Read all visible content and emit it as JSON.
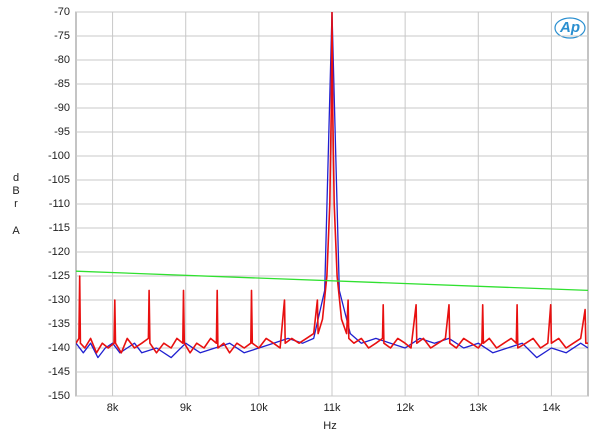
{
  "chart_data": {
    "type": "line",
    "logo": "Ap",
    "xlabel": "Hz",
    "ylabel": [
      "dBr",
      "A"
    ],
    "xlim": [
      7500,
      14500
    ],
    "ylim": [
      -150,
      -70
    ],
    "xticks": [
      {
        "value": 8000,
        "label": "8k"
      },
      {
        "value": 9000,
        "label": "9k"
      },
      {
        "value": 10000,
        "label": "10k"
      },
      {
        "value": 11000,
        "label": "11k"
      },
      {
        "value": 12000,
        "label": "12k"
      },
      {
        "value": 13000,
        "label": "13k"
      },
      {
        "value": 14000,
        "label": "14k"
      }
    ],
    "yticks": [
      -70,
      -75,
      -80,
      -85,
      -90,
      -95,
      -100,
      -105,
      -110,
      -115,
      -120,
      -125,
      -130,
      -135,
      -140,
      -145,
      -150
    ],
    "grid": true,
    "series": [
      {
        "color": "#2020d0",
        "x": [
          7500,
          7600,
          7700,
          7800,
          7900,
          8000,
          8100,
          8200,
          8300,
          8400,
          8600,
          8800,
          9000,
          9200,
          9400,
          9600,
          9800,
          10000,
          10200,
          10400,
          10600,
          10750,
          10900,
          11000,
          11100,
          11250,
          11400,
          11600,
          11800,
          12000,
          12200,
          12400,
          12600,
          12800,
          13000,
          13200,
          13400,
          13600,
          13800,
          14000,
          14200,
          14400,
          14500
        ],
        "values": [
          -139,
          -141,
          -139,
          -142,
          -140,
          -139,
          -141,
          -140,
          -139,
          -141,
          -140,
          -142,
          -139,
          -141,
          -140,
          -139,
          -141,
          -140,
          -139,
          -138,
          -139,
          -138,
          -128,
          -70,
          -128,
          -137,
          -139,
          -138,
          -139,
          -140,
          -138,
          -139,
          -138,
          -140,
          -139,
          -141,
          -140,
          -139,
          -142,
          -140,
          -141,
          -139,
          -140
        ]
      },
      {
        "color": "#e81010",
        "x": [
          7500,
          7540,
          7550,
          7560,
          7620,
          7700,
          7780,
          7860,
          7940,
          8020,
          8030,
          8040,
          8120,
          8200,
          8300,
          8400,
          8490,
          8500,
          8510,
          8600,
          8700,
          8800,
          8880,
          8960,
          8970,
          8980,
          9060,
          9150,
          9250,
          9340,
          9420,
          9430,
          9440,
          9520,
          9600,
          9700,
          9800,
          9890,
          9900,
          9910,
          10000,
          10100,
          10200,
          10290,
          10350,
          10360,
          10450,
          10550,
          10650,
          10750,
          10800,
          10810,
          10870,
          10930,
          10970,
          10990,
          11000,
          11010,
          11030,
          11070,
          11130,
          11200,
          11220,
          11230,
          11300,
          11400,
          11500,
          11600,
          11690,
          11700,
          11710,
          11800,
          11900,
          12000,
          12080,
          12150,
          12160,
          12250,
          12350,
          12450,
          12550,
          12600,
          12610,
          12700,
          12800,
          12900,
          13000,
          13050,
          13060,
          13070,
          13150,
          13250,
          13350,
          13450,
          13520,
          13530,
          13540,
          13650,
          13750,
          13850,
          13950,
          13990,
          14000,
          14100,
          14200,
          14300,
          14400,
          14460,
          14470,
          14500
        ],
        "values": [
          -139,
          -138,
          -125,
          -139,
          -140,
          -138,
          -141,
          -139,
          -140,
          -139,
          -130,
          -139,
          -141,
          -138,
          -140,
          -139,
          -138,
          -128,
          -139,
          -141,
          -139,
          -140,
          -138,
          -139,
          -128,
          -139,
          -141,
          -139,
          -140,
          -138,
          -139,
          -128,
          -140,
          -139,
          -141,
          -139,
          -140,
          -139,
          -128,
          -139,
          -140,
          -138,
          -139,
          -140,
          -130,
          -139,
          -138,
          -139,
          -138,
          -137,
          -130,
          -137,
          -134,
          -125,
          -110,
          -90,
          -70,
          -90,
          -110,
          -125,
          -134,
          -137,
          -130,
          -138,
          -139,
          -138,
          -140,
          -139,
          -138,
          -131,
          -139,
          -140,
          -138,
          -139,
          -140,
          -131,
          -139,
          -138,
          -140,
          -139,
          -138,
          -131,
          -139,
          -140,
          -138,
          -139,
          -140,
          -139,
          -131,
          -139,
          -138,
          -140,
          -139,
          -138,
          -139,
          -131,
          -140,
          -139,
          -138,
          -140,
          -139,
          -131,
          -139,
          -138,
          -140,
          -139,
          -138,
          -132,
          -139,
          -139
        ]
      },
      {
        "color": "#30e030",
        "x": [
          7500,
          14500
        ],
        "values": [
          -124,
          -128
        ]
      }
    ]
  }
}
